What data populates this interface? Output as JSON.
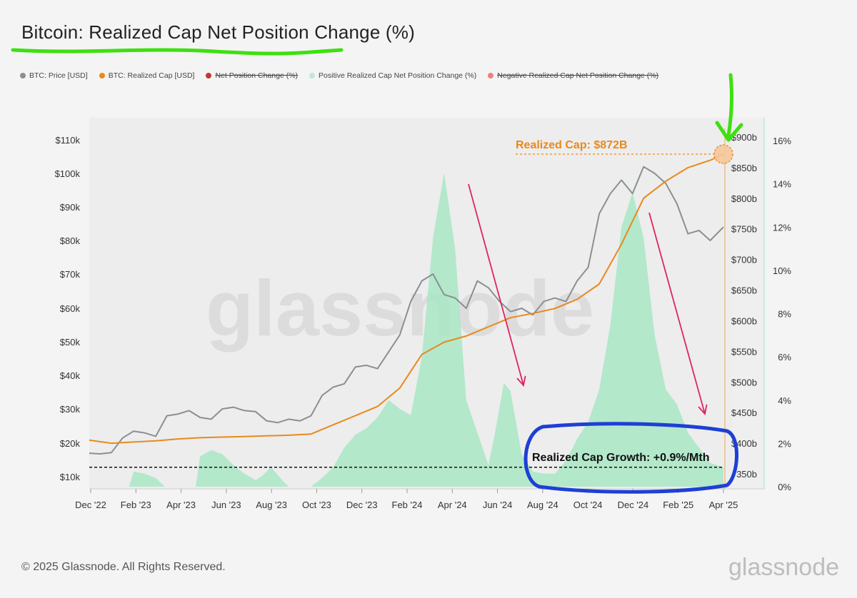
{
  "header": {
    "title": "Bitcoin: Realized Cap Net Position Change (%)"
  },
  "legend": [
    {
      "label": "BTC: Price [USD]",
      "color": "#8a8f94",
      "struck": false
    },
    {
      "label": "BTC: Realized Cap [USD]",
      "color": "#e8891c",
      "struck": false
    },
    {
      "label": "Net Position Change (%)",
      "color": "#c0392b",
      "struck": true
    },
    {
      "label": "Positive Realized Cap Net Position Change (%)",
      "color": "#bfe9d2",
      "struck": false
    },
    {
      "label": "Negative Realized Cap Net Position Change (%)",
      "color": "#f08080",
      "struck": true
    }
  ],
  "annotations": {
    "realized_cap_label": "Realized Cap: $872B",
    "growth_label": "Realized Cap Growth: +0.9%/Mth"
  },
  "watermark": "glassnode",
  "footer": {
    "copyright": "© 2025 Glassnode. All Rights Reserved.",
    "brand": "glassnode"
  },
  "colors": {
    "price": "#8a8f94",
    "realized_cap": "#e8891c",
    "positive_fill": "#a8e6c4",
    "arrow": "#e0245e",
    "highlight_underline": "#3de00f",
    "circle": "#1e3fd6"
  },
  "chart_data": {
    "type": "line",
    "x_ticks": [
      "Dec '22",
      "Feb '23",
      "Apr '23",
      "Jun '23",
      "Aug '23",
      "Oct '23",
      "Dec '23",
      "Feb '24",
      "Apr '24",
      "Jun '24",
      "Aug '24",
      "Oct '24",
      "Dec '24",
      "Feb '25",
      "Apr '25"
    ],
    "y_left": {
      "ticks": [
        "$10k",
        "$20k",
        "$30k",
        "$40k",
        "$50k",
        "$60k",
        "$70k",
        "$80k",
        "$90k",
        "$100k",
        "$110k"
      ],
      "range": [
        7000,
        110000
      ]
    },
    "y_mid": {
      "ticks": [
        "350b",
        "$400b",
        "$450b",
        "$500b",
        "$550b",
        "$600b",
        "$650b",
        "$700b",
        "$750b",
        "$800b",
        "$850b",
        "$900b"
      ],
      "range": [
        330,
        900
      ]
    },
    "y_right": {
      "ticks": [
        "0%",
        "2%",
        "4%",
        "6%",
        "8%",
        "10%",
        "12%",
        "14%",
        "16%"
      ],
      "range": [
        0,
        16.5
      ]
    },
    "x_range": [
      0,
      28.6
    ],
    "series": [
      {
        "name": "BTC: Price [USD]",
        "axis": "left",
        "points": [
          [
            0,
            17000
          ],
          [
            0.5,
            16800
          ],
          [
            1,
            17200
          ],
          [
            1.5,
            21500
          ],
          [
            2,
            23500
          ],
          [
            2.5,
            23000
          ],
          [
            3,
            22000
          ],
          [
            3.5,
            28000
          ],
          [
            4,
            28500
          ],
          [
            4.5,
            29500
          ],
          [
            5,
            27500
          ],
          [
            5.5,
            27000
          ],
          [
            6,
            30000
          ],
          [
            6.5,
            30500
          ],
          [
            7,
            29500
          ],
          [
            7.5,
            29200
          ],
          [
            8,
            26500
          ],
          [
            8.5,
            26000
          ],
          [
            9,
            27000
          ],
          [
            9.5,
            26500
          ],
          [
            10,
            28000
          ],
          [
            10.5,
            34000
          ],
          [
            11,
            36500
          ],
          [
            11.5,
            37500
          ],
          [
            12,
            42500
          ],
          [
            12.5,
            43000
          ],
          [
            13,
            42000
          ],
          [
            13.5,
            47000
          ],
          [
            14,
            52000
          ],
          [
            14.5,
            62000
          ],
          [
            15,
            68000
          ],
          [
            15.5,
            70000
          ],
          [
            16,
            64000
          ],
          [
            16.5,
            63000
          ],
          [
            17,
            60000
          ],
          [
            17.5,
            68000
          ],
          [
            18,
            66000
          ],
          [
            18.5,
            62000
          ],
          [
            19,
            59000
          ],
          [
            19.5,
            60000
          ],
          [
            20,
            58000
          ],
          [
            20.5,
            62000
          ],
          [
            21,
            63000
          ],
          [
            21.5,
            62000
          ],
          [
            22,
            68000
          ],
          [
            22.5,
            72000
          ],
          [
            23,
            88000
          ],
          [
            23.5,
            94000
          ],
          [
            24,
            98000
          ],
          [
            24.5,
            94000
          ],
          [
            25,
            102000
          ],
          [
            25.5,
            100000
          ],
          [
            26,
            97000
          ],
          [
            26.5,
            91000
          ],
          [
            27,
            82000
          ],
          [
            27.5,
            83000
          ],
          [
            28,
            80000
          ],
          [
            28.6,
            84000
          ]
        ]
      },
      {
        "name": "BTC: Realized Cap [USD]",
        "axis": "mid",
        "points": [
          [
            0,
            405
          ],
          [
            1,
            400
          ],
          [
            2,
            402
          ],
          [
            3,
            404
          ],
          [
            4,
            407
          ],
          [
            5,
            409
          ],
          [
            6,
            410
          ],
          [
            7,
            411
          ],
          [
            8,
            412
          ],
          [
            9,
            413
          ],
          [
            10,
            415
          ],
          [
            11,
            430
          ],
          [
            12,
            445
          ],
          [
            13,
            460
          ],
          [
            14,
            490
          ],
          [
            15,
            545
          ],
          [
            16,
            565
          ],
          [
            17,
            575
          ],
          [
            18,
            590
          ],
          [
            19,
            605
          ],
          [
            20,
            612
          ],
          [
            21,
            620
          ],
          [
            22,
            635
          ],
          [
            23,
            660
          ],
          [
            24,
            725
          ],
          [
            25,
            800
          ],
          [
            26,
            828
          ],
          [
            27,
            850
          ],
          [
            28,
            862
          ],
          [
            28.6,
            872
          ]
        ]
      },
      {
        "name": "Positive Realized Cap Net Position Change (%)",
        "axis": "right",
        "points": [
          [
            0,
            0
          ],
          [
            1.8,
            0
          ],
          [
            2,
            0.7
          ],
          [
            2.5,
            0.6
          ],
          [
            3,
            0.4
          ],
          [
            3.4,
            0
          ],
          [
            4.8,
            0
          ],
          [
            5,
            1.4
          ],
          [
            5.5,
            1.7
          ],
          [
            6,
            1.5
          ],
          [
            6.5,
            1.0
          ],
          [
            7,
            0.6
          ],
          [
            7.5,
            0.3
          ],
          [
            7.8,
            0.5
          ],
          [
            8.2,
            0.9
          ],
          [
            8.7,
            0.3
          ],
          [
            9,
            0
          ],
          [
            10,
            0
          ],
          [
            10.5,
            0.4
          ],
          [
            11,
            0.9
          ],
          [
            11.5,
            1.8
          ],
          [
            12,
            2.4
          ],
          [
            12.5,
            2.7
          ],
          [
            13,
            3.2
          ],
          [
            13.5,
            4.0
          ],
          [
            14,
            3.6
          ],
          [
            14.5,
            3.3
          ],
          [
            15,
            6.0
          ],
          [
            15.5,
            11.5
          ],
          [
            16,
            14.5
          ],
          [
            16.5,
            11.0
          ],
          [
            17,
            4.0
          ],
          [
            17.5,
            2.5
          ],
          [
            18,
            1.0
          ],
          [
            18.3,
            2.5
          ],
          [
            18.7,
            4.8
          ],
          [
            19,
            4.4
          ],
          [
            19.5,
            1.5
          ],
          [
            20,
            0.7
          ],
          [
            20.5,
            0.6
          ],
          [
            21,
            0.6
          ],
          [
            21.5,
            1.2
          ],
          [
            22,
            2.2
          ],
          [
            22.5,
            3.0
          ],
          [
            23,
            4.5
          ],
          [
            23.5,
            7.5
          ],
          [
            24,
            12.0
          ],
          [
            24.5,
            13.6
          ],
          [
            25,
            11.5
          ],
          [
            25.5,
            7.0
          ],
          [
            26,
            4.5
          ],
          [
            26.5,
            3.8
          ],
          [
            27,
            2.5
          ],
          [
            27.5,
            1.8
          ],
          [
            28,
            1.1
          ],
          [
            28.6,
            0.9
          ]
        ]
      }
    ],
    "reference_line": {
      "axis": "right",
      "value": 0.9,
      "style": "dashed"
    },
    "watermark": "glassnode"
  }
}
